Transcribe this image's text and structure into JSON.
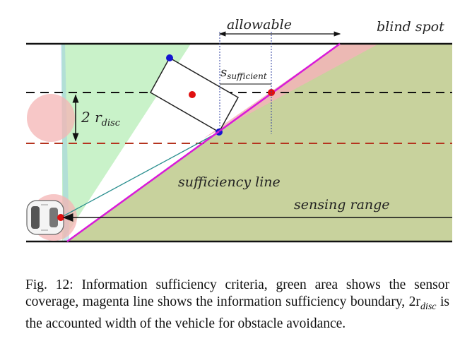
{
  "diagram": {
    "labels": {
      "allowable": "allowable",
      "blind_spot": "blind spot",
      "s_sufficient_main": "s",
      "s_sufficient_sub": "sufficient",
      "two_r_disc_main": "2 r",
      "two_r_disc_sub": "disc",
      "sufficiency_line": "sufficiency line",
      "sensing_range": "sensing range"
    },
    "colors": {
      "sensor_coverage": "#c9f2c9",
      "road_region": "#c8d29d",
      "sufficiency_line": "#d91ad9",
      "blind_spot": "#f2b5b8",
      "disc": "#f4b4b4",
      "point_red": "#e01010",
      "point_blue": "#1515d0",
      "lane_dashed_top": "#111111",
      "lane_dashed_bottom": "#b5341f",
      "ray": "#2a8f8f"
    }
  },
  "caption": {
    "text": "Fig. 12: Information sufficiency criteria, green area shows the sensor coverage, magenta line shows the information sufficiency boundary, 2r",
    "sub": "disc",
    "text_end": " is the accounted width of the vehicle for obstacle avoidance."
  }
}
